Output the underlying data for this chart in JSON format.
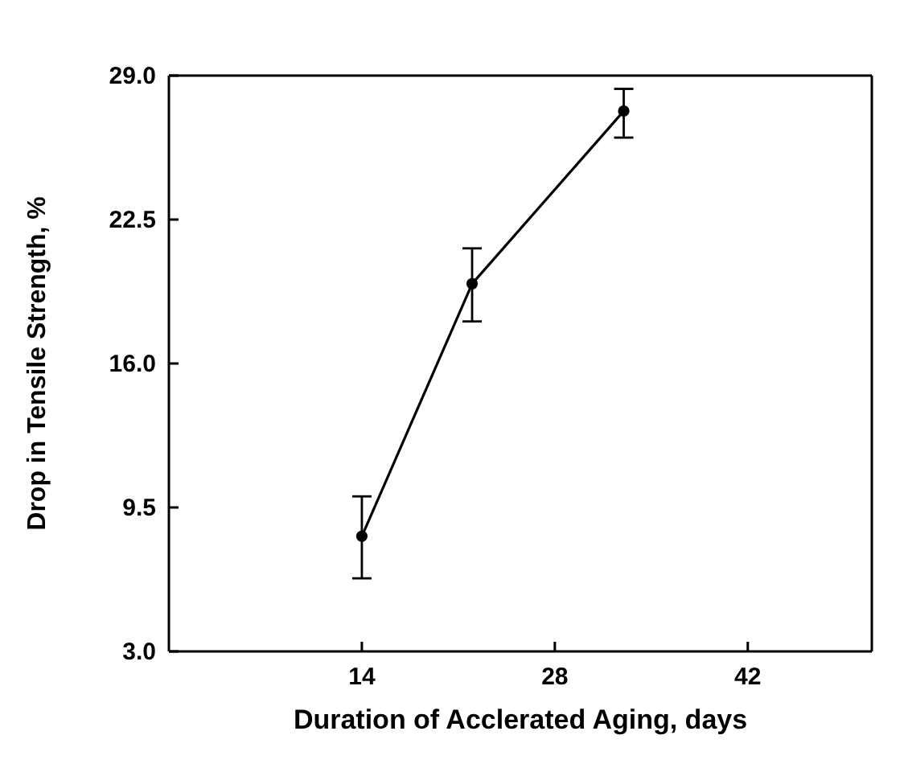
{
  "chart_data": {
    "type": "line",
    "xlabel": "Duration of Acclerated Aging, days",
    "ylabel": "Drop in Tensile Strength, %",
    "x": [
      14,
      22,
      33
    ],
    "series": [
      {
        "color": "#000000",
        "values": [
          8.2,
          19.6,
          27.4
        ],
        "errors": [
          [
            6.3,
            10.0
          ],
          [
            17.9,
            21.2
          ],
          [
            26.2,
            28.4
          ]
        ]
      }
    ],
    "xlim": [
      0,
      51
    ],
    "xticks": [
      14,
      28,
      42
    ],
    "ylim": [
      3,
      29
    ],
    "yticks": [
      {
        "value": 3,
        "label": "3.0"
      },
      {
        "value": 9.5,
        "label": "9.5"
      },
      {
        "value": 16,
        "label": "16.0"
      },
      {
        "value": 22.5,
        "label": "22.5"
      },
      {
        "value": 29,
        "label": "29.0"
      }
    ],
    "marker": "circle",
    "line_style": "solid",
    "grid": false
  }
}
